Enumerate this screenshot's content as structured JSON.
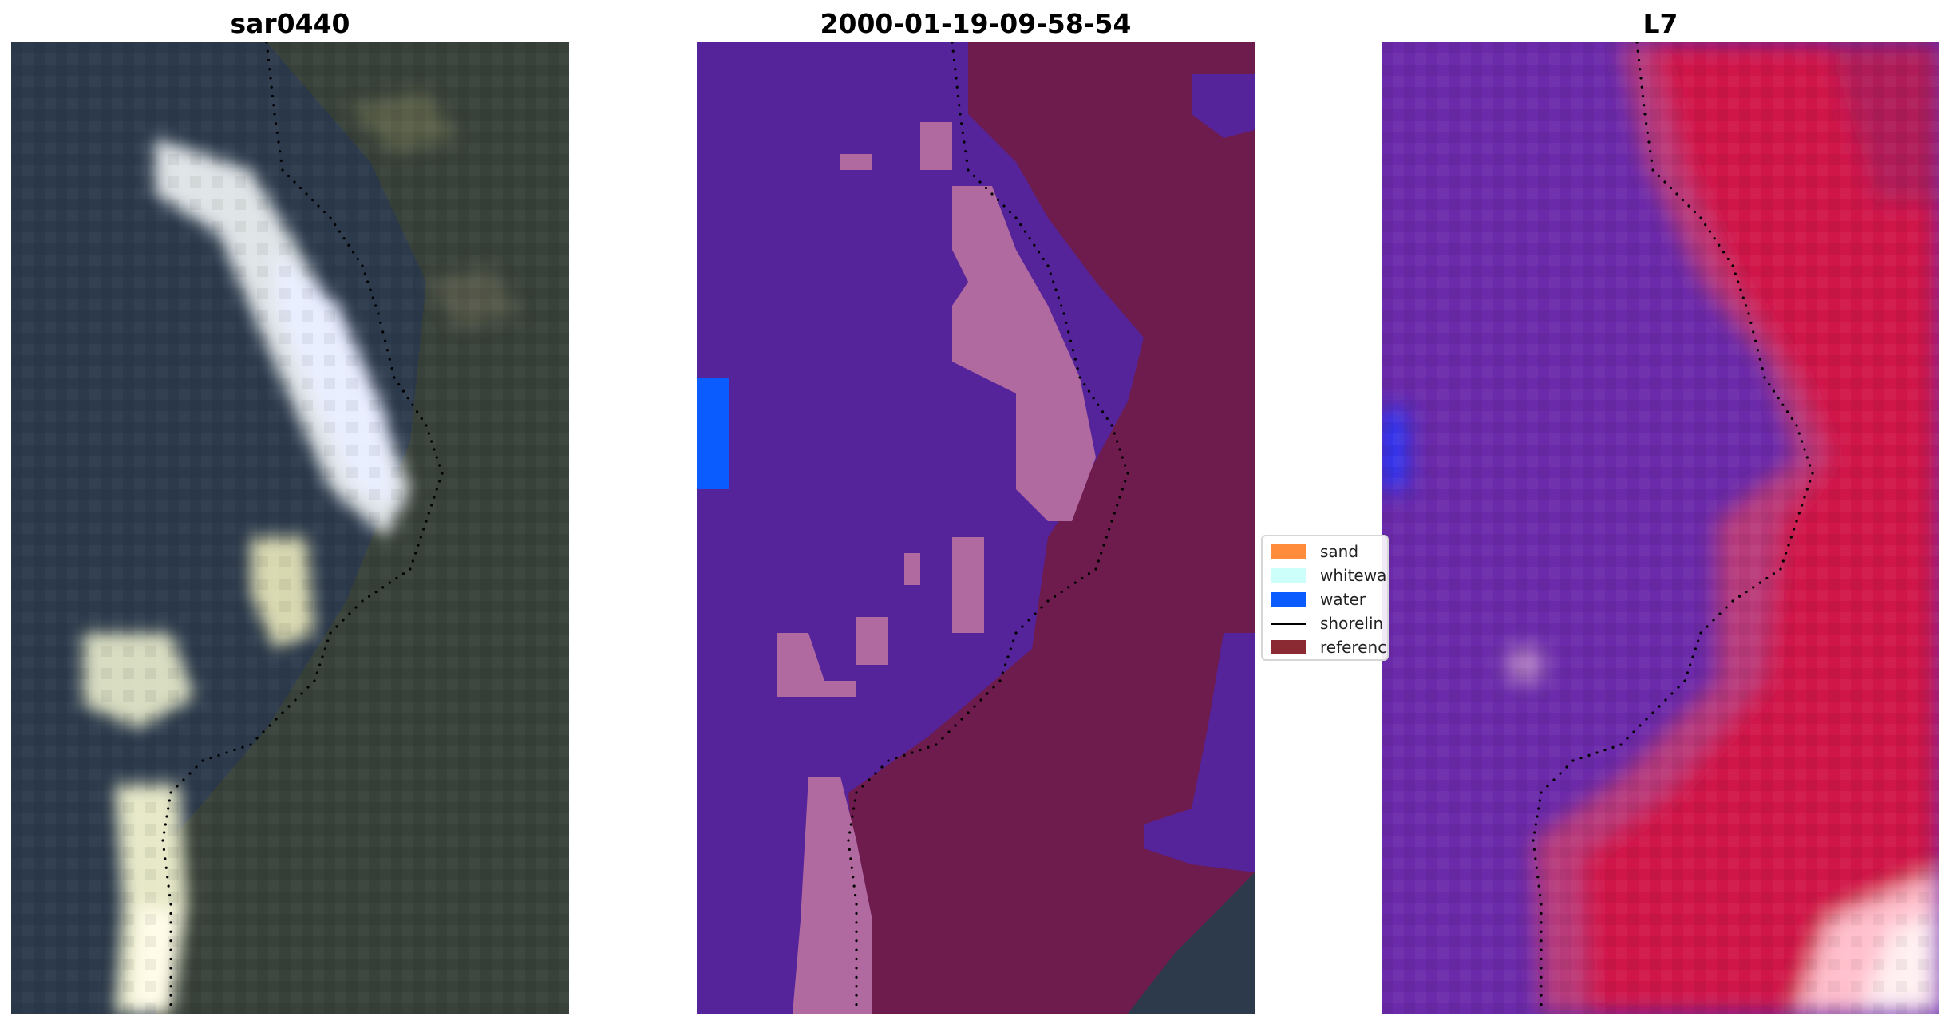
{
  "panels": [
    {
      "title": "sar0440"
    },
    {
      "title": "2000-01-19-09-58-54"
    },
    {
      "title": "L7"
    }
  ],
  "legend": {
    "items": [
      {
        "label": "sand",
        "color": "#ff8c3a",
        "kind": "patch"
      },
      {
        "label": "whitewa",
        "color": "#ccfffa",
        "kind": "patch"
      },
      {
        "label": "water",
        "color": "#0a5cff",
        "kind": "patch"
      },
      {
        "label": "shorelin",
        "color": "#000000",
        "kind": "line"
      },
      {
        "label": "referenc",
        "color": "#8b2a33",
        "kind": "patch"
      }
    ]
  },
  "colors": {
    "classified_background": "#55239a",
    "classified_land": "#6e1b4e",
    "classified_sand_overlay": "#b06aa0",
    "classified_water": "#0a5cff",
    "rgb_dark": "#2c3a4c",
    "rgb_bright": "#eef2e0",
    "l7_water": "#6a2aaa",
    "l7_land": "#d0164a",
    "shoreline_dots": "#000000"
  }
}
